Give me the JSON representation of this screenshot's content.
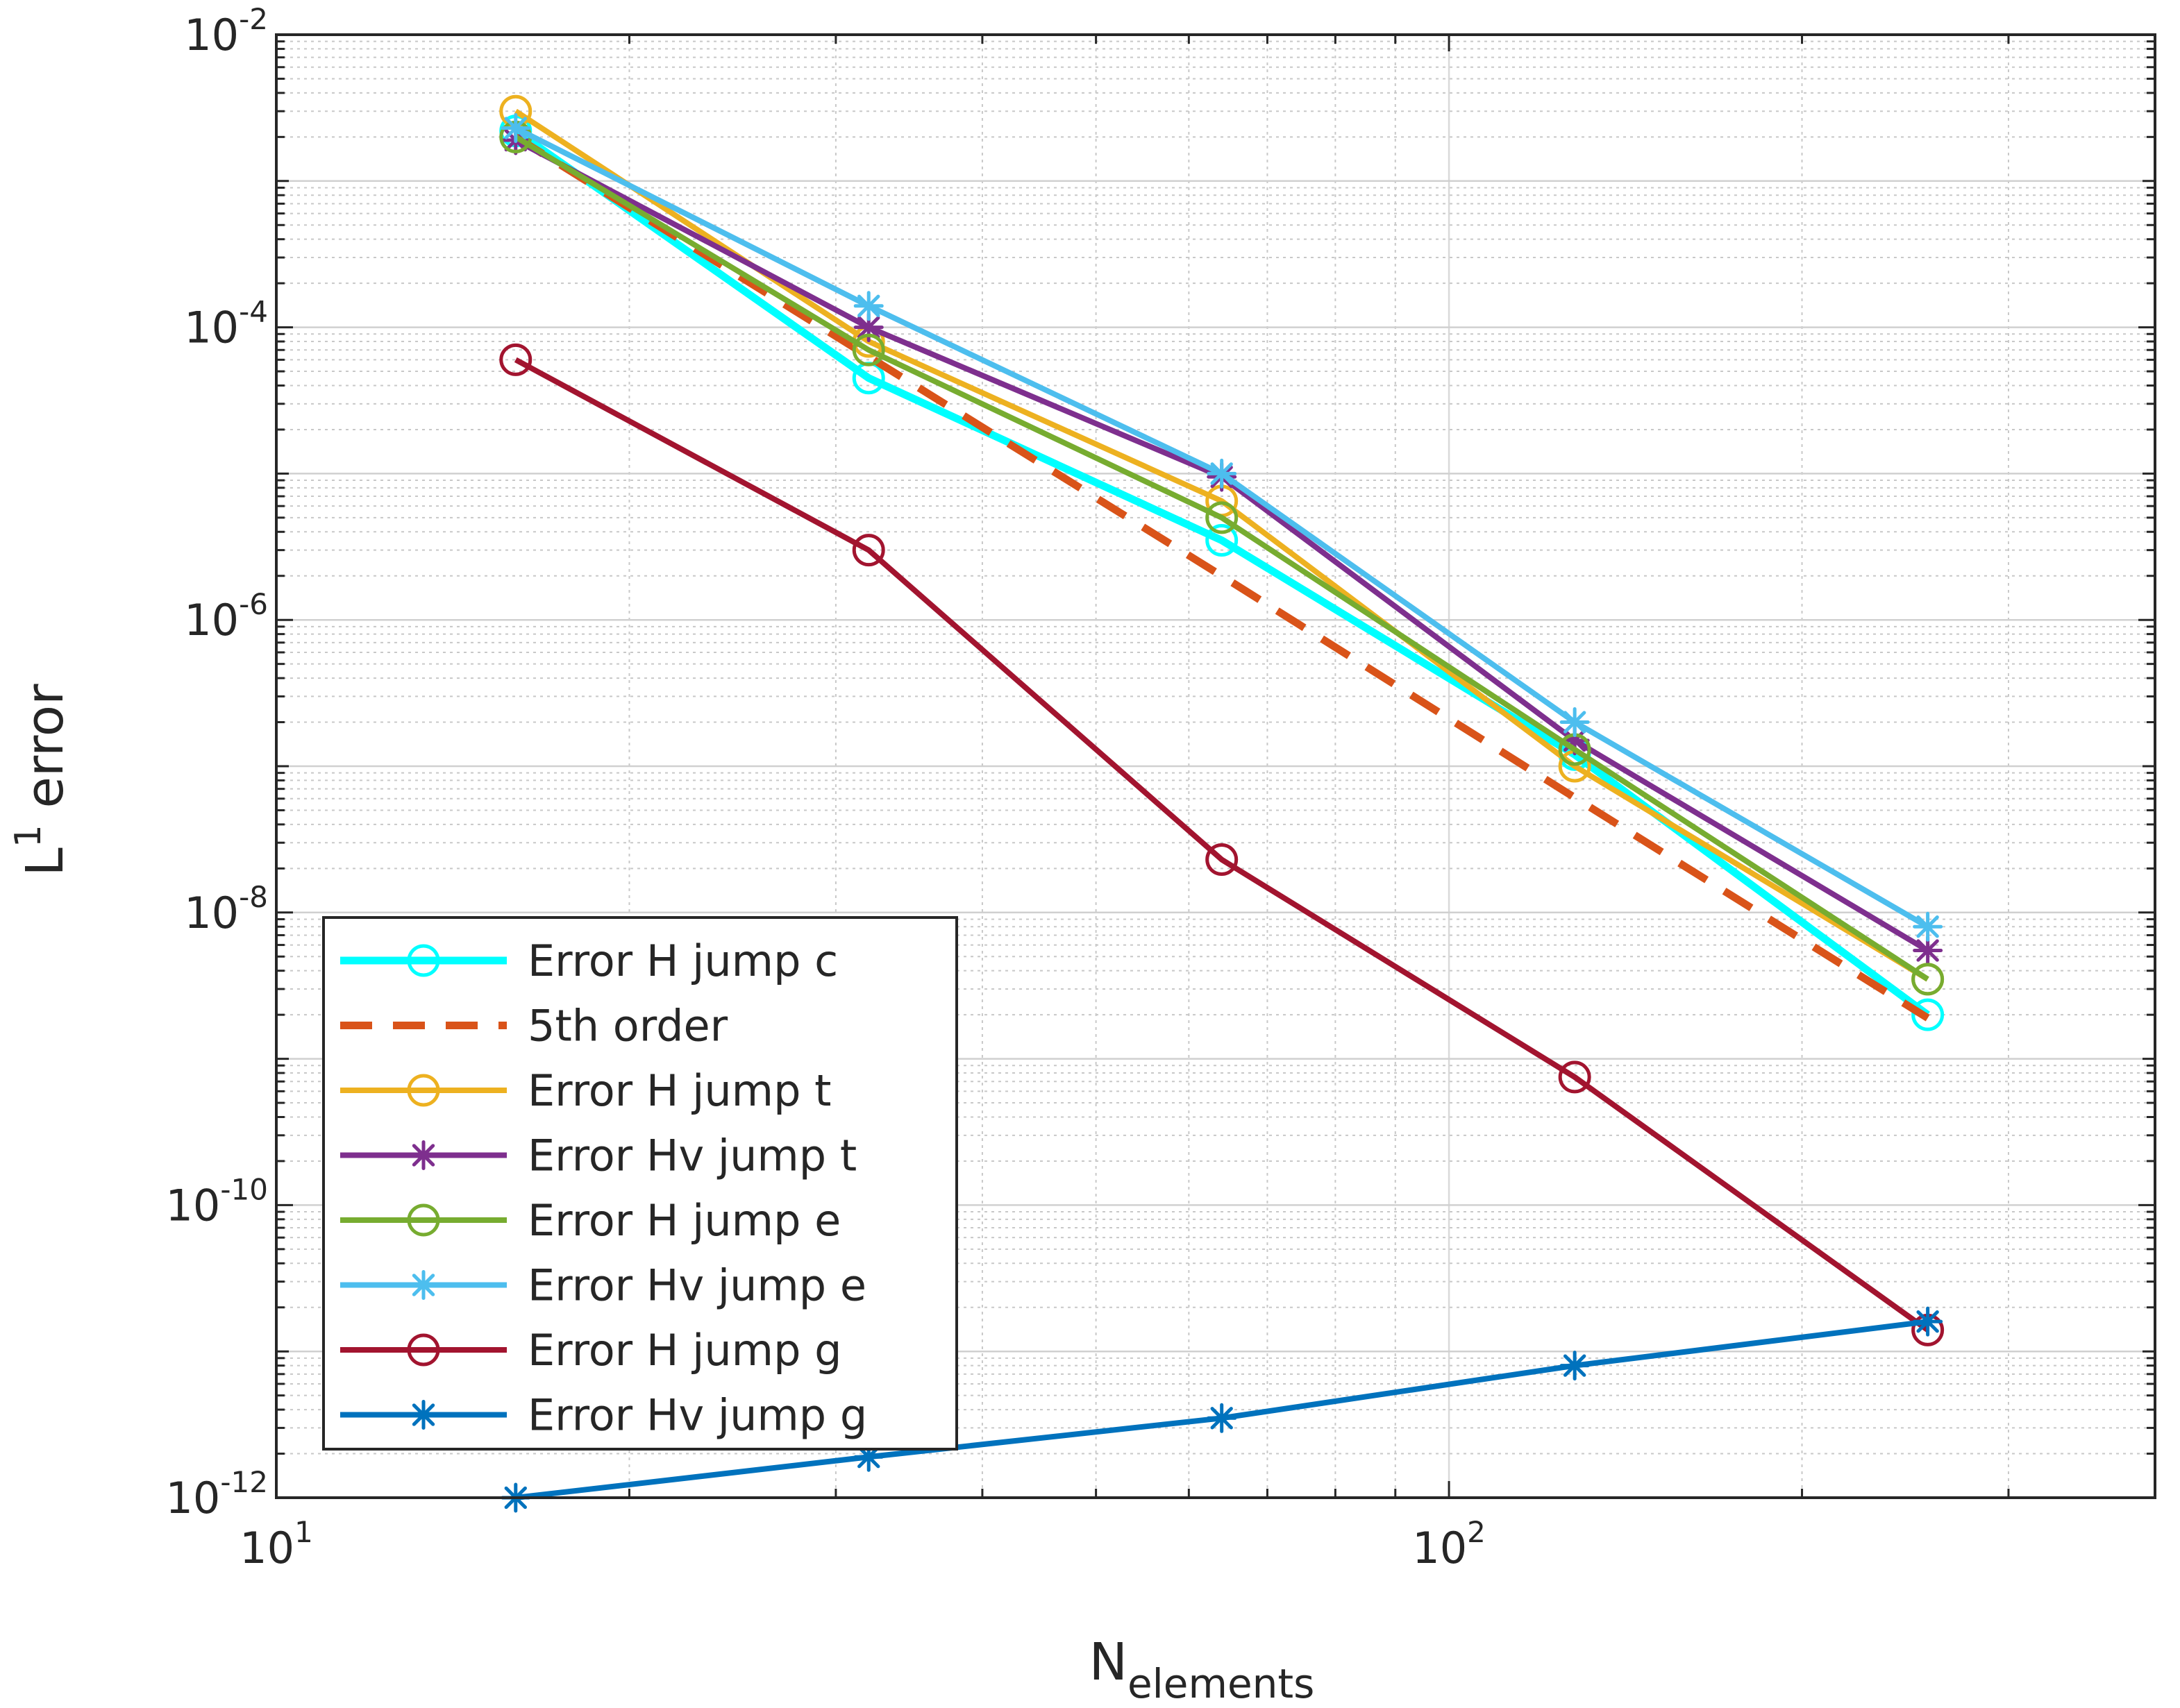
{
  "chart_data": {
    "type": "line",
    "xscale": "log",
    "yscale": "log",
    "xlim": [
      10,
      400
    ],
    "ylim": [
      1e-12,
      0.01
    ],
    "grid": true,
    "minor_grid": true,
    "legend_location": "bottom-left",
    "xlabel": {
      "base": "N",
      "sub": "elements"
    },
    "ylabel": {
      "base": "L",
      "sup": "1",
      "rest": " error"
    },
    "xticks": [
      {
        "value": 10,
        "base": "10",
        "exp": "1"
      },
      {
        "value": 100,
        "base": "10",
        "exp": "2"
      }
    ],
    "yticks": [
      {
        "value": 1e-12,
        "base": "10",
        "exp": "-12"
      },
      {
        "value": 1e-10,
        "base": "10",
        "exp": "-10"
      },
      {
        "value": 1e-08,
        "base": "10",
        "exp": "-8"
      },
      {
        "value": 1e-06,
        "base": "10",
        "exp": "-6"
      },
      {
        "value": 0.0001,
        "base": "10",
        "exp": "-4"
      },
      {
        "value": 0.01,
        "base": "10",
        "exp": "-2"
      }
    ],
    "x": [
      16,
      32,
      64,
      128,
      256
    ],
    "series": [
      {
        "name": "Error H jump c",
        "color": "#00FFFF",
        "marker": "circle",
        "dash": "solid",
        "thick": true,
        "values": [
          0.0022,
          4.5e-05,
          3.5e-06,
          1.2e-07,
          2e-09
        ]
      },
      {
        "name": "5th order",
        "color": "#D95319",
        "marker": "none",
        "dash": "dashed",
        "thick": true,
        "values": [
          0.002,
          6.3e-05,
          2e-06,
          6.1e-08,
          1.9e-09
        ]
      },
      {
        "name": "Error H jump t",
        "color": "#EDB120",
        "marker": "circle",
        "dash": "solid",
        "thick": false,
        "values": [
          0.003,
          8e-05,
          6.5e-06,
          1e-07,
          3.5e-09
        ]
      },
      {
        "name": "Error Hv jump t",
        "color": "#7E2F8E",
        "marker": "star",
        "dash": "solid",
        "thick": false,
        "values": [
          0.0019,
          0.0001,
          9.5e-06,
          1.5e-07,
          5.5e-09
        ]
      },
      {
        "name": "Error H jump e",
        "color": "#77AC30",
        "marker": "circle",
        "dash": "solid",
        "thick": false,
        "values": [
          0.002,
          7e-05,
          5e-06,
          1.3e-07,
          3.5e-09
        ]
      },
      {
        "name": "Error Hv jump e",
        "color": "#4DBEEE",
        "marker": "star",
        "dash": "solid",
        "thick": false,
        "values": [
          0.0023,
          0.00014,
          1e-05,
          2e-07,
          8e-09
        ]
      },
      {
        "name": "Error H jump g",
        "color": "#A2142F",
        "marker": "circle",
        "dash": "solid",
        "thick": false,
        "values": [
          6e-05,
          3e-06,
          2.3e-08,
          7.5e-10,
          1.4e-11
        ]
      },
      {
        "name": "Error Hv jump g",
        "color": "#0072BD",
        "marker": "star",
        "dash": "solid",
        "thick": false,
        "values": [
          1e-12,
          1.9e-12,
          3.5e-12,
          8e-12,
          1.6e-11
        ]
      }
    ]
  }
}
